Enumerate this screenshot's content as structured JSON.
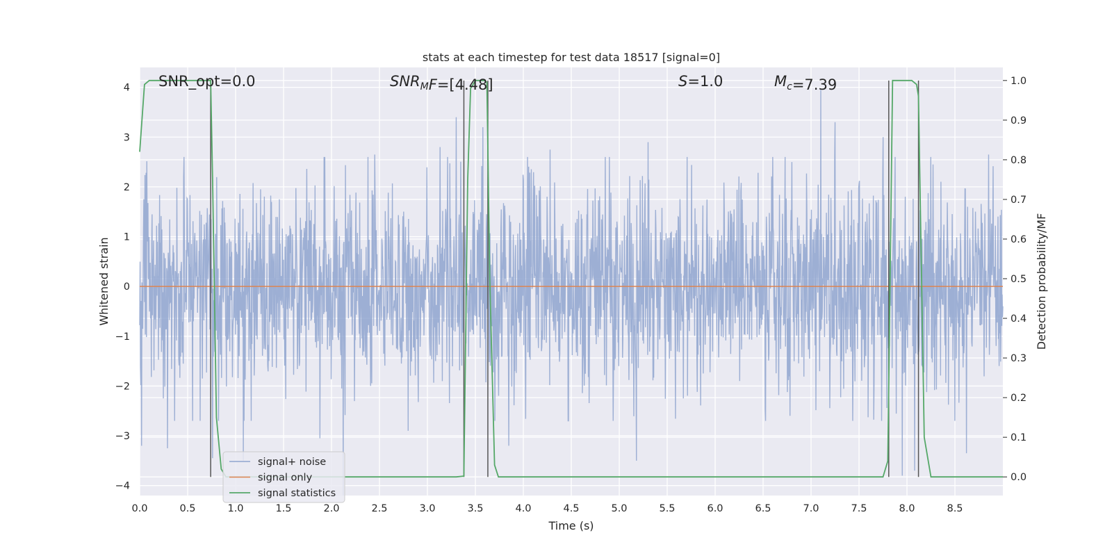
{
  "chart_data": {
    "type": "line",
    "title": "stats at each timestep for test data 18517 [signal=0]",
    "xlabel": "Time (s)",
    "ylabel": "Whitened strain",
    "y2label": "Detection probability/MF",
    "xlim": [
      0.0,
      9.0
    ],
    "ylim": [
      -4.2,
      4.4
    ],
    "y2lim": [
      -0.047,
      1.033
    ],
    "xticks": [
      "0.0",
      "0.5",
      "1.0",
      "1.5",
      "2.0",
      "2.5",
      "3.0",
      "3.5",
      "4.0",
      "4.5",
      "5.0",
      "5.5",
      "6.0",
      "6.5",
      "7.0",
      "7.5",
      "8.0",
      "8.5"
    ],
    "yticks": [
      "−4",
      "−3",
      "−2",
      "−1",
      "0",
      "1",
      "2",
      "3",
      "4"
    ],
    "y2ticks": [
      "0.0",
      "0.1",
      "0.2",
      "0.3",
      "0.4",
      "0.5",
      "0.6",
      "0.7",
      "0.8",
      "0.9",
      "1.0"
    ],
    "grid": true,
    "legend_position": "lower-left",
    "annotations": [
      {
        "name": "snr-opt",
        "parts": [
          {
            "t": "SNR_opt=0.0",
            "italic": false
          }
        ]
      },
      {
        "name": "snr-mf",
        "parts": [
          {
            "t": "SNR",
            "italic": true
          },
          {
            "t": "M",
            "italic": true,
            "sub": true
          },
          {
            "t": "F",
            "italic": true
          },
          {
            "t": "=[4.48]",
            "italic": false
          }
        ]
      },
      {
        "name": "s-value",
        "parts": [
          {
            "t": "S",
            "italic": true
          },
          {
            "t": "=1.0",
            "italic": false
          }
        ]
      },
      {
        "name": "chirp-mass",
        "parts": [
          {
            "t": "M",
            "italic": true
          },
          {
            "t": "c",
            "italic": true,
            "sub": true
          },
          {
            "t": "=7.39",
            "italic": false
          }
        ]
      }
    ],
    "series": [
      {
        "name": "signal+ noise",
        "color": "#8fa5cf",
        "description_kind": "noise",
        "amplitude_sigma": 1.0,
        "peaks": [
          [
            0.02,
            -3.2
          ],
          [
            0.29,
            -3.25
          ],
          [
            0.76,
            -3.45
          ],
          [
            1.08,
            -3.5
          ],
          [
            1.88,
            -3.05
          ],
          [
            2.12,
            -4.2
          ],
          [
            2.45,
            2.65
          ],
          [
            2.8,
            -2.9
          ],
          [
            3.13,
            2.8
          ],
          [
            3.3,
            3.4
          ],
          [
            3.58,
            3.2
          ],
          [
            3.85,
            -3.2
          ],
          [
            4.28,
            2.75
          ],
          [
            5.18,
            -3.5
          ],
          [
            5.3,
            2.9
          ],
          [
            6.6,
            2.6
          ],
          [
            6.8,
            2.5
          ],
          [
            7.1,
            3.95
          ],
          [
            7.25,
            3.3
          ],
          [
            7.75,
            3.0
          ],
          [
            7.95,
            -3.8
          ],
          [
            8.08,
            -3.7
          ],
          [
            8.25,
            2.6
          ],
          [
            8.62,
            -3.35
          ],
          [
            8.85,
            2.65
          ]
        ]
      },
      {
        "name": "signal only",
        "color": "#dd8452",
        "y": 0.0
      },
      {
        "name": "signal statistics",
        "color": "#55a868",
        "axis": "right",
        "x": [
          0.0,
          0.05,
          0.1,
          0.6,
          0.74,
          0.76,
          0.8,
          0.85,
          0.9,
          1.0,
          3.3,
          3.38,
          3.42,
          3.45,
          3.5,
          3.6,
          3.62,
          3.65,
          3.7,
          3.74,
          4.0,
          7.5,
          7.75,
          7.8,
          7.85,
          8.05,
          8.1,
          8.12,
          8.18,
          8.25,
          8.35,
          9.0
        ],
        "y": [
          0.82,
          0.99,
          1.0,
          1.0,
          1.0,
          0.75,
          0.15,
          0.02,
          0.0,
          0.0,
          0.0,
          0.002,
          0.75,
          0.98,
          1.0,
          1.0,
          0.995,
          0.5,
          0.03,
          0.0,
          0.0,
          0.0,
          0.0,
          0.04,
          1.0,
          1.0,
          0.99,
          0.96,
          0.1,
          0.0,
          0.0,
          0.0
        ]
      }
    ],
    "vertical_lines": [
      0.74,
      3.38,
      3.63,
      7.81,
      8.12
    ],
    "vertical_line_color": "#555555"
  }
}
